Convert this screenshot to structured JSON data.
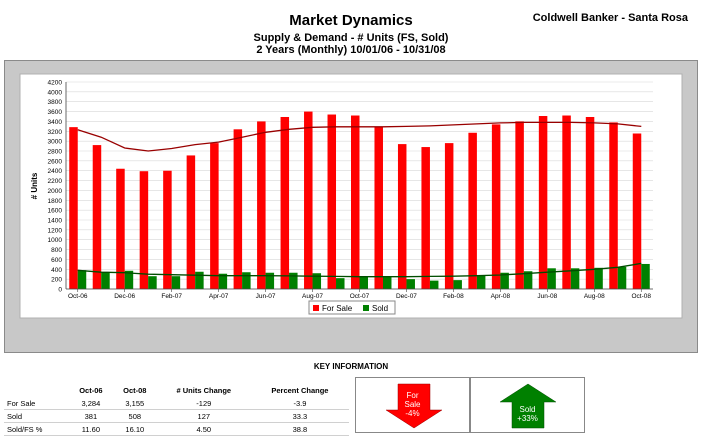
{
  "header": {
    "title": "Market Dynamics",
    "subtitle1": "Supply & Demand - # Units (FS, Sold)",
    "subtitle2": "2 Years (Monthly) 10/01/06 - 10/31/08",
    "brand": "Coldwell Banker - Santa Rosa"
  },
  "chart_data": {
    "type": "bar",
    "ylabel": "# Units",
    "ylim": [
      0,
      4200
    ],
    "yticks": [
      0,
      200,
      400,
      600,
      800,
      1000,
      1200,
      1400,
      1600,
      1800,
      2000,
      2200,
      2400,
      2600,
      2800,
      3000,
      3200,
      3400,
      3600,
      3800,
      4000,
      4200
    ],
    "categories": [
      "Oct-06",
      "Nov-06",
      "Dec-06",
      "Jan-07",
      "Feb-07",
      "Mar-07",
      "Apr-07",
      "May-07",
      "Jun-07",
      "Jul-07",
      "Aug-07",
      "Sep-07",
      "Oct-07",
      "Nov-07",
      "Dec-07",
      "Jan-08",
      "Feb-08",
      "Mar-08",
      "Apr-08",
      "May-08",
      "Jun-08",
      "Jul-08",
      "Aug-08",
      "Sep-08",
      "Oct-08"
    ],
    "tick_labels": [
      "Oct-06",
      "",
      "Dec-06",
      "",
      "Feb-07",
      "",
      "Apr-07",
      "",
      "Jun-07",
      "",
      "Aug-07",
      "",
      "Oct-07",
      "",
      "Dec-07",
      "",
      "Feb-08",
      "",
      "Apr-08",
      "",
      "Jun-08",
      "",
      "Aug-08",
      "",
      "Oct-08"
    ],
    "series": [
      {
        "name": "For Sale",
        "color": "#ff0000",
        "values": [
          3284,
          2920,
          2440,
          2390,
          2400,
          2710,
          2960,
          3240,
          3400,
          3490,
          3600,
          3540,
          3520,
          3280,
          2940,
          2880,
          2960,
          3170,
          3340,
          3400,
          3510,
          3520,
          3490,
          3380,
          3155
        ],
        "trend": [
          3230,
          3080,
          2860,
          2800,
          2850,
          2930,
          2980,
          3080,
          3180,
          3240,
          3280,
          3290,
          3290,
          3290,
          3300,
          3310,
          3330,
          3350,
          3370,
          3380,
          3380,
          3380,
          3370,
          3350,
          3300
        ]
      },
      {
        "name": "Sold",
        "color": "#008000",
        "values": [
          381,
          340,
          370,
          260,
          260,
          350,
          310,
          340,
          330,
          330,
          320,
          220,
          250,
          250,
          200,
          170,
          180,
          280,
          330,
          360,
          420,
          420,
          430,
          450,
          508
        ],
        "trend": [
          380,
          340,
          330,
          300,
          290,
          280,
          270,
          270,
          270,
          265,
          260,
          255,
          250,
          250,
          250,
          255,
          260,
          270,
          285,
          310,
          340,
          370,
          400,
          440,
          520
        ]
      }
    ],
    "legend_position": "bottom-center",
    "grid": true
  },
  "key": {
    "title": "KEY INFORMATION",
    "columns": [
      "",
      "Oct-06",
      "Oct-08",
      "# Units Change",
      "Percent Change"
    ],
    "rows": [
      {
        "label": "For Sale",
        "v1": "3,284",
        "v2": "3,155",
        "change": "-129",
        "pct": "-3.9"
      },
      {
        "label": "Sold",
        "v1": "381",
        "v2": "508",
        "change": "127",
        "pct": "33.3"
      },
      {
        "label": "Sold/FS %",
        "v1": "11.60",
        "v2": "16.10",
        "change": "4.50",
        "pct": "38.8"
      }
    ],
    "for_sale_arrow": {
      "line1": "For",
      "line2": "Sale",
      "line3": "-4%",
      "color": "#ff0000",
      "direction": "down"
    },
    "sold_arrow": {
      "line1": "Sold",
      "line2": "+33%",
      "color": "#008000",
      "direction": "up"
    }
  }
}
